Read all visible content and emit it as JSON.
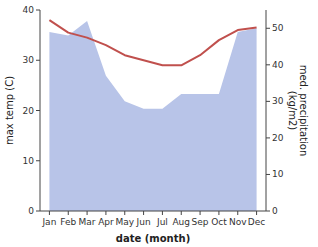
{
  "chart_data": {
    "type": "line",
    "categories": [
      "Jan",
      "Feb",
      "Mar",
      "Apr",
      "May",
      "Jun",
      "Jul",
      "Aug",
      "Sep",
      "Oct",
      "Nov",
      "Dec"
    ],
    "xlabel": "date (month)",
    "ylabel": "max temp (C)",
    "y2label": "med. precipitation\n(kg/m2)",
    "ylim": [
      0,
      40
    ],
    "yticks": [
      0,
      10,
      20,
      30,
      40
    ],
    "y2lim": [
      0,
      55
    ],
    "y2ticks": [
      0,
      10,
      20,
      30,
      40,
      50
    ],
    "grid": false,
    "series": [
      {
        "type": "area",
        "axis": "y2",
        "color": "#b8c4e8",
        "values": [
          49,
          48,
          52,
          37,
          30,
          28,
          28,
          32,
          32,
          32,
          49,
          50
        ]
      },
      {
        "type": "line",
        "color": "#c0504d",
        "values": [
          38,
          35.5,
          34.5,
          33,
          31,
          30,
          29,
          29,
          31,
          34,
          36,
          36.5
        ]
      }
    ]
  }
}
